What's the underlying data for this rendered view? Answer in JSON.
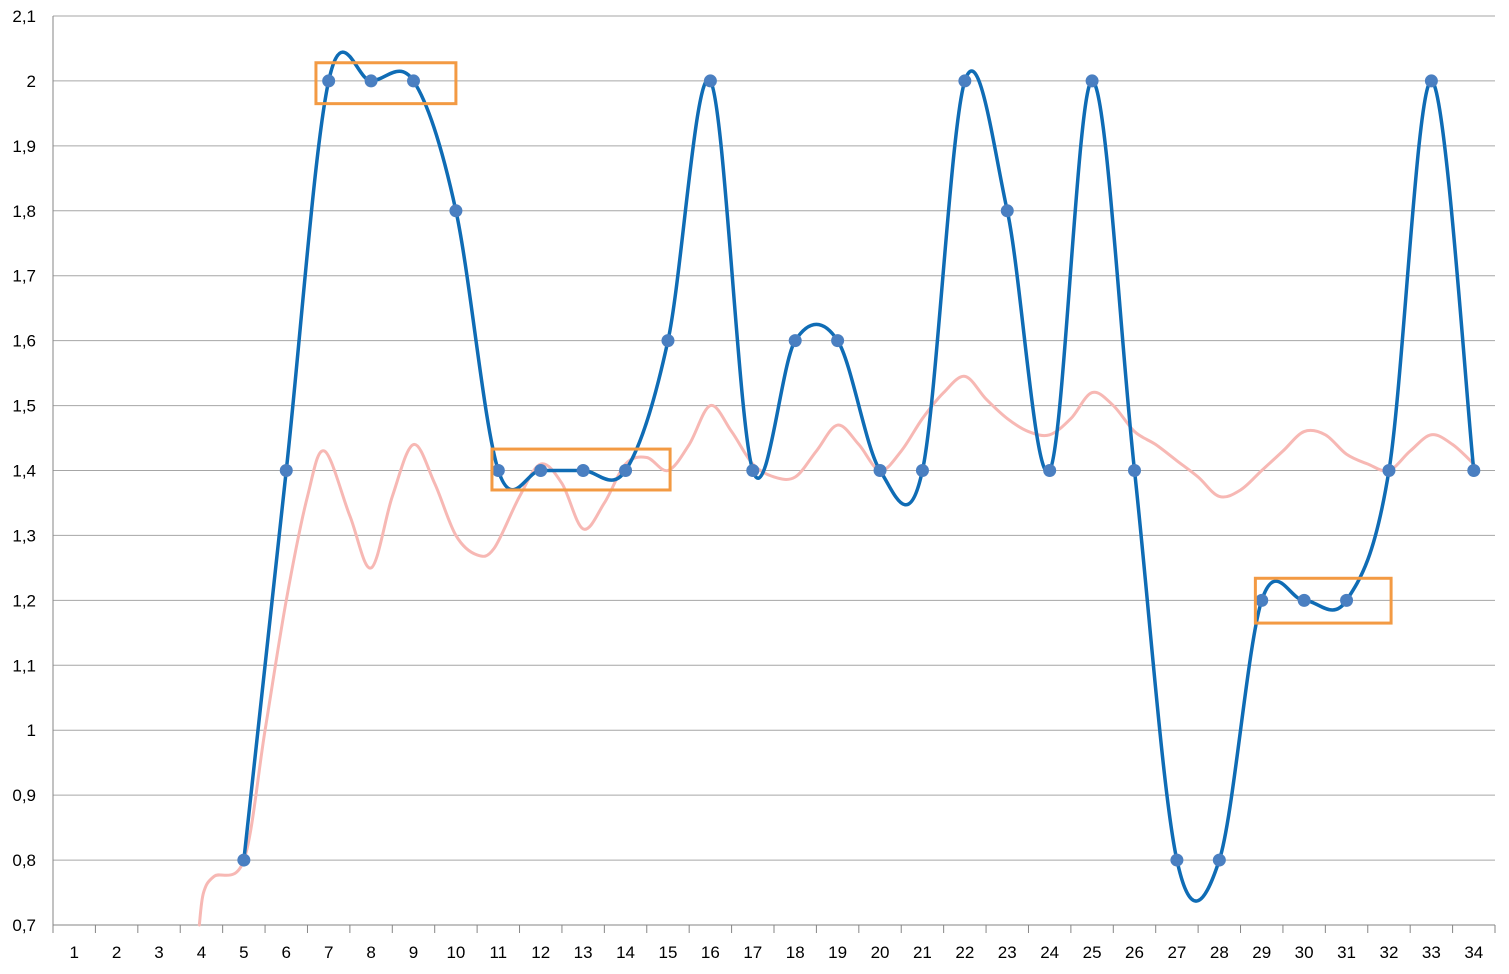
{
  "chart_data": {
    "type": "line",
    "categories": [
      "1",
      "2",
      "3",
      "4",
      "5",
      "6",
      "7",
      "8",
      "9",
      "10",
      "11",
      "12",
      "13",
      "14",
      "15",
      "16",
      "17",
      "18",
      "19",
      "20",
      "21",
      "22",
      "23",
      "24",
      "25",
      "26",
      "27",
      "28",
      "29",
      "30",
      "31",
      "32",
      "33",
      "34"
    ],
    "y_tick_labels": [
      "0,7",
      "0,8",
      "0,9",
      "1",
      "1,1",
      "1,2",
      "1,3",
      "1,4",
      "1,5",
      "1,6",
      "1,7",
      "1,8",
      "1,9",
      "2",
      "2,1"
    ],
    "ylim": [
      0.7,
      2.1
    ],
    "grid": true,
    "legend": "none",
    "series": [
      {
        "color": "#0f6cb5",
        "marker_color": "#4a7fc1",
        "smooth": true,
        "markers": true,
        "values": [
          null,
          null,
          null,
          null,
          0.8,
          1.4,
          2.0,
          2.0,
          2.0,
          1.8,
          1.4,
          1.4,
          1.4,
          1.4,
          1.6,
          2.0,
          1.4,
          1.6,
          1.6,
          1.4,
          1.4,
          2.0,
          1.8,
          1.4,
          2.0,
          1.4,
          0.8,
          0.8,
          1.2,
          1.2,
          1.2,
          1.4,
          2.0,
          1.4
        ]
      },
      {
        "color": "#f7b8b4",
        "smooth": true,
        "markers": false,
        "points": [
          [
            3.95,
            0.7
          ],
          [
            4.05,
            0.75
          ],
          [
            4.3,
            0.775
          ],
          [
            5.0,
            0.8
          ],
          [
            5.5,
            1.0
          ],
          [
            6.0,
            1.2
          ],
          [
            6.5,
            1.36
          ],
          [
            6.9,
            1.43
          ],
          [
            7.5,
            1.33
          ],
          [
            8.0,
            1.25
          ],
          [
            8.5,
            1.36
          ],
          [
            9.0,
            1.44
          ],
          [
            9.5,
            1.38
          ],
          [
            10.0,
            1.3
          ],
          [
            10.5,
            1.27
          ],
          [
            10.9,
            1.28
          ],
          [
            11.5,
            1.36
          ],
          [
            12.0,
            1.41
          ],
          [
            12.5,
            1.38
          ],
          [
            13.0,
            1.31
          ],
          [
            13.5,
            1.35
          ],
          [
            14.0,
            1.41
          ],
          [
            14.5,
            1.42
          ],
          [
            15.0,
            1.4
          ],
          [
            15.5,
            1.44
          ],
          [
            16.0,
            1.5
          ],
          [
            16.5,
            1.46
          ],
          [
            17.0,
            1.41
          ],
          [
            17.5,
            1.39
          ],
          [
            18.0,
            1.39
          ],
          [
            18.5,
            1.43
          ],
          [
            19.0,
            1.47
          ],
          [
            19.5,
            1.44
          ],
          [
            20.0,
            1.4
          ],
          [
            20.5,
            1.43
          ],
          [
            21.0,
            1.48
          ],
          [
            21.5,
            1.52
          ],
          [
            22.0,
            1.545
          ],
          [
            22.5,
            1.51
          ],
          [
            23.0,
            1.48
          ],
          [
            23.5,
            1.46
          ],
          [
            24.0,
            1.455
          ],
          [
            24.5,
            1.48
          ],
          [
            25.0,
            1.52
          ],
          [
            25.5,
            1.5
          ],
          [
            26.0,
            1.46
          ],
          [
            26.5,
            1.44
          ],
          [
            27.0,
            1.415
          ],
          [
            27.5,
            1.39
          ],
          [
            28.0,
            1.36
          ],
          [
            28.5,
            1.37
          ],
          [
            29.0,
            1.4
          ],
          [
            29.5,
            1.43
          ],
          [
            30.0,
            1.46
          ],
          [
            30.5,
            1.455
          ],
          [
            31.0,
            1.425
          ],
          [
            31.5,
            1.41
          ],
          [
            32.0,
            1.4
          ],
          [
            32.5,
            1.43
          ],
          [
            33.0,
            1.455
          ],
          [
            33.5,
            1.44
          ],
          [
            34.0,
            1.41
          ]
        ]
      }
    ],
    "highlight_boxes": {
      "color": "#f39a43",
      "items": [
        {
          "x_from": 6.7,
          "x_to": 10.0,
          "y_from": 1.965,
          "y_to": 2.028
        },
        {
          "x_from": 10.85,
          "x_to": 15.05,
          "y_from": 1.37,
          "y_to": 1.433
        },
        {
          "x_from": 28.85,
          "x_to": 32.05,
          "y_from": 1.165,
          "y_to": 1.234
        }
      ]
    }
  }
}
